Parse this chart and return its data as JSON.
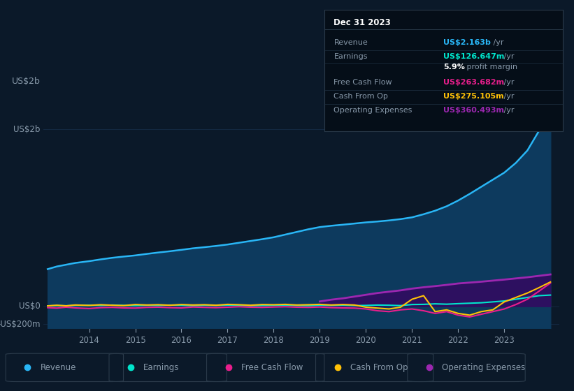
{
  "background_color": "#0b1929",
  "plot_bg_color": "#0b1929",
  "fig_width": 8.21,
  "fig_height": 5.6,
  "dpi": 100,
  "revenue_color": "#29b6f6",
  "revenue_fill_color": "#0d3a5e",
  "earnings_color": "#00e5cc",
  "free_cash_flow_color": "#e91e8c",
  "cash_from_op_color": "#ffc107",
  "operating_expenses_color": "#9c27b0",
  "operating_expenses_fill_color": "#2d1060",
  "grid_color": "#1a3352",
  "text_color": "#8899aa",
  "white_color": "#ffffff",
  "tooltip_bg": "#050e18",
  "tooltip_border": "#222222",
  "ylim": [
    -250,
    2400
  ],
  "xlim_start": 2013.0,
  "xlim_end": 2024.2,
  "ytick_positions": [
    -200,
    0,
    2000
  ],
  "ytick_labels": [
    "-US$200m",
    "US$0",
    "US$2b"
  ],
  "xtick_positions": [
    2014,
    2015,
    2016,
    2017,
    2018,
    2019,
    2020,
    2021,
    2022,
    2023
  ],
  "revenue_x": [
    2013.1,
    2013.3,
    2013.5,
    2013.7,
    2014.0,
    2014.25,
    2014.5,
    2014.75,
    2015.0,
    2015.25,
    2015.5,
    2015.75,
    2016.0,
    2016.25,
    2016.5,
    2016.75,
    2017.0,
    2017.25,
    2017.5,
    2017.75,
    2018.0,
    2018.25,
    2018.5,
    2018.75,
    2019.0,
    2019.25,
    2019.5,
    2019.75,
    2020.0,
    2020.25,
    2020.5,
    2020.75,
    2021.0,
    2021.25,
    2021.5,
    2021.75,
    2022.0,
    2022.25,
    2022.5,
    2022.75,
    2023.0,
    2023.25,
    2023.5,
    2023.75,
    2024.0
  ],
  "revenue_y": [
    420,
    450,
    470,
    490,
    510,
    530,
    548,
    562,
    575,
    592,
    608,
    622,
    638,
    655,
    668,
    682,
    698,
    718,
    738,
    758,
    780,
    810,
    840,
    870,
    895,
    910,
    922,
    935,
    948,
    958,
    970,
    985,
    1005,
    1040,
    1080,
    1130,
    1195,
    1270,
    1350,
    1430,
    1510,
    1620,
    1760,
    1980,
    2163
  ],
  "earnings_x": [
    2013.1,
    2013.3,
    2013.5,
    2013.7,
    2014.0,
    2014.25,
    2014.5,
    2014.75,
    2015.0,
    2015.25,
    2015.5,
    2015.75,
    2016.0,
    2016.25,
    2016.5,
    2016.75,
    2017.0,
    2017.25,
    2017.5,
    2017.75,
    2018.0,
    2018.25,
    2018.5,
    2018.75,
    2019.0,
    2019.25,
    2019.5,
    2019.75,
    2020.0,
    2020.25,
    2020.5,
    2020.75,
    2021.0,
    2021.25,
    2021.5,
    2021.75,
    2022.0,
    2022.25,
    2022.5,
    2022.75,
    2023.0,
    2023.25,
    2023.5,
    2023.75,
    2024.0
  ],
  "earnings_y": [
    5,
    8,
    6,
    10,
    12,
    10,
    14,
    10,
    8,
    12,
    10,
    14,
    12,
    8,
    12,
    10,
    14,
    12,
    8,
    10,
    12,
    14,
    10,
    8,
    12,
    10,
    12,
    8,
    10,
    14,
    12,
    8,
    20,
    22,
    28,
    24,
    30,
    35,
    40,
    50,
    60,
    80,
    100,
    120,
    127
  ],
  "fcf_x": [
    2013.1,
    2013.3,
    2013.5,
    2013.7,
    2014.0,
    2014.25,
    2014.5,
    2014.75,
    2015.0,
    2015.25,
    2015.5,
    2015.75,
    2016.0,
    2016.25,
    2016.5,
    2016.75,
    2017.0,
    2017.25,
    2017.5,
    2017.75,
    2018.0,
    2018.25,
    2018.5,
    2018.75,
    2019.0,
    2019.25,
    2019.5,
    2019.75,
    2020.0,
    2020.25,
    2020.5,
    2020.75,
    2021.0,
    2021.25,
    2021.5,
    2021.75,
    2022.0,
    2022.25,
    2022.5,
    2022.75,
    2023.0,
    2023.25,
    2023.5,
    2023.75,
    2024.0
  ],
  "fcf_y": [
    -15,
    -20,
    -10,
    -18,
    -25,
    -15,
    -12,
    -18,
    -20,
    -12,
    -10,
    -15,
    -18,
    -8,
    -12,
    -15,
    -10,
    -5,
    -10,
    -12,
    -8,
    -5,
    -10,
    -12,
    -8,
    -15,
    -18,
    -20,
    -30,
    -50,
    -60,
    -40,
    -30,
    -50,
    -80,
    -60,
    -100,
    -120,
    -90,
    -60,
    -30,
    20,
    80,
    170,
    263
  ],
  "cashop_x": [
    2013.1,
    2013.3,
    2013.5,
    2013.7,
    2014.0,
    2014.25,
    2014.5,
    2014.75,
    2015.0,
    2015.25,
    2015.5,
    2015.75,
    2016.0,
    2016.25,
    2016.5,
    2016.75,
    2017.0,
    2017.25,
    2017.5,
    2017.75,
    2018.0,
    2018.25,
    2018.5,
    2018.75,
    2019.0,
    2019.25,
    2019.5,
    2019.75,
    2020.0,
    2020.25,
    2020.5,
    2020.75,
    2021.0,
    2021.25,
    2021.5,
    2021.75,
    2022.0,
    2022.25,
    2022.5,
    2022.75,
    2023.0,
    2023.25,
    2023.5,
    2023.75,
    2024.0
  ],
  "cashop_y": [
    5,
    12,
    5,
    15,
    10,
    18,
    12,
    8,
    20,
    15,
    18,
    12,
    20,
    15,
    18,
    12,
    22,
    18,
    12,
    20,
    18,
    22,
    15,
    18,
    22,
    15,
    20,
    15,
    -10,
    -20,
    -30,
    -10,
    80,
    120,
    -60,
    -40,
    -80,
    -100,
    -60,
    -40,
    50,
    100,
    150,
    210,
    275
  ],
  "opex_x": [
    2019.0,
    2019.25,
    2019.5,
    2019.75,
    2020.0,
    2020.25,
    2020.5,
    2020.75,
    2021.0,
    2021.25,
    2021.5,
    2021.75,
    2022.0,
    2022.25,
    2022.5,
    2022.75,
    2023.0,
    2023.25,
    2023.5,
    2023.75,
    2024.0
  ],
  "opex_y": [
    55,
    75,
    90,
    110,
    130,
    150,
    165,
    180,
    200,
    215,
    228,
    242,
    258,
    268,
    278,
    290,
    302,
    315,
    328,
    344,
    360
  ],
  "tooltip_date": "Dec 31 2023",
  "tooltip_rows": [
    {
      "label": "Revenue",
      "value": "US$2.163b",
      "suffix": " /yr",
      "value_color": "#29b6f6",
      "indent": false
    },
    {
      "label": "Earnings",
      "value": "US$126.647m",
      "suffix": " /yr",
      "value_color": "#00e5cc",
      "indent": false
    },
    {
      "label": "",
      "value": "5.9%",
      "suffix": " profit margin",
      "value_color": "#ffffff",
      "indent": true
    },
    {
      "label": "Free Cash Flow",
      "value": "US$263.682m",
      "suffix": " /yr",
      "value_color": "#e91e8c",
      "indent": false
    },
    {
      "label": "Cash From Op",
      "value": "US$275.105m",
      "suffix": " /yr",
      "value_color": "#ffc107",
      "indent": false
    },
    {
      "label": "Operating Expenses",
      "value": "US$360.493m",
      "suffix": " /yr",
      "value_color": "#9c27b0",
      "indent": false
    }
  ],
  "legend_items": [
    {
      "label": "Revenue",
      "color": "#29b6f6"
    },
    {
      "label": "Earnings",
      "color": "#00e5cc"
    },
    {
      "label": "Free Cash Flow",
      "color": "#e91e8c"
    },
    {
      "label": "Cash From Op",
      "color": "#ffc107"
    },
    {
      "label": "Operating Expenses",
      "color": "#9c27b0"
    }
  ]
}
